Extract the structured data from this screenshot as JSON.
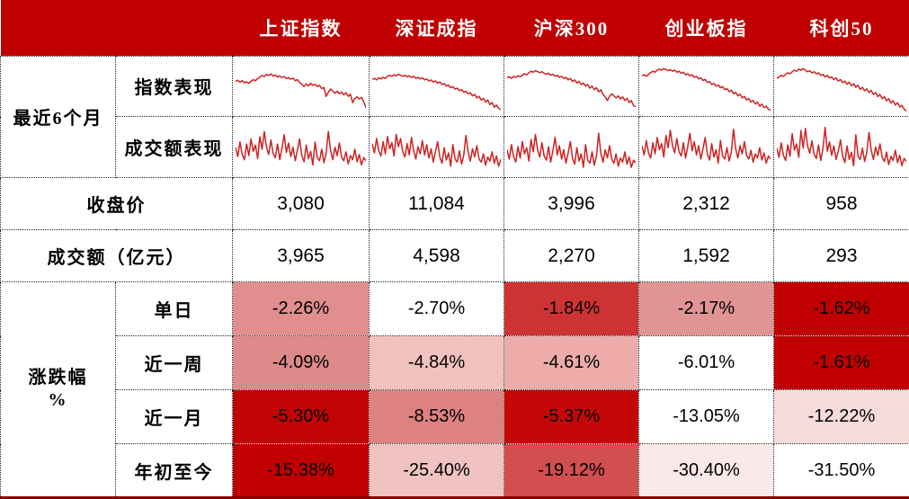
{
  "header": {
    "columns": [
      "上证指数",
      "深证成指",
      "沪深300",
      "创业板指",
      "科创50"
    ]
  },
  "labels": {
    "period_group": "最近6个月",
    "index_row": "指数表现",
    "volume_row": "成交额表现",
    "close_row": "收盘价",
    "turnover_row": "成交额（亿元）",
    "change_group_line1": "涨跌幅",
    "change_group_line2": "%"
  },
  "close": {
    "values": [
      "3,080",
      "11,084",
      "3,996",
      "2,312",
      "958"
    ]
  },
  "turnover": {
    "values": [
      "3,965",
      "4,598",
      "2,270",
      "1,592",
      "293"
    ]
  },
  "changes": {
    "rows": [
      {
        "label": "单日",
        "cells": [
          {
            "text": "-2.26%",
            "bg": "#E08E8E"
          },
          {
            "text": "-2.70%",
            "bg": "#FFFFFF"
          },
          {
            "text": "-1.84%",
            "bg": "#CE3334"
          },
          {
            "text": "-2.17%",
            "bg": "#E09494"
          },
          {
            "text": "-1.62%",
            "bg": "#C00000"
          }
        ]
      },
      {
        "label": "近一周",
        "cells": [
          {
            "text": "-4.09%",
            "bg": "#DF8A8A"
          },
          {
            "text": "-4.84%",
            "bg": "#F1C2BD"
          },
          {
            "text": "-4.61%",
            "bg": "#EDACA9"
          },
          {
            "text": "-6.01%",
            "bg": "#FFFFFF"
          },
          {
            "text": "-1.61%",
            "bg": "#C00000"
          }
        ]
      },
      {
        "label": "近一月",
        "cells": [
          {
            "text": "-5.30%",
            "bg": "#C10404"
          },
          {
            "text": "-8.53%",
            "bg": "#DE8181"
          },
          {
            "text": "-5.37%",
            "bg": "#C40808"
          },
          {
            "text": "-13.05%",
            "bg": "#FFFFFF"
          },
          {
            "text": "-12.22%",
            "bg": "#F6DBDA"
          }
        ]
      },
      {
        "label": "年初至今",
        "cells": [
          {
            "text": "-15.38%",
            "bg": "#C00000"
          },
          {
            "text": "-25.40%",
            "bg": "#F0C3C0"
          },
          {
            "text": "-19.12%",
            "bg": "#D14F4F"
          },
          {
            "text": "-30.40%",
            "bg": "#FAE9E8"
          },
          {
            "text": "-31.50%",
            "bg": "#FFFFFF"
          }
        ]
      }
    ]
  },
  "colors": {
    "header_bg": "#C00000",
    "strong_red": "#C00000",
    "sparkline": "#CE2222",
    "bottom_rule": "#8B0000",
    "grid_dots": "#222222"
  },
  "chart_data": {
    "type": "table",
    "title": "A股主要指数表现（最近6个月）",
    "columns": [
      "上证指数",
      "深证成指",
      "沪深300",
      "创业板指",
      "科创50"
    ],
    "close_price": [
      3080,
      11084,
      3996,
      2312,
      958
    ],
    "turnover_yi_yuan": [
      3965,
      4598,
      2270,
      1592,
      293
    ],
    "change_pct": {
      "单日": [
        -2.26,
        -2.7,
        -1.84,
        -2.17,
        -1.62
      ],
      "近一周": [
        -4.09,
        -4.84,
        -4.61,
        -6.01,
        -1.61
      ],
      "近一月": [
        -5.3,
        -8.53,
        -5.37,
        -13.05,
        -12.22
      ],
      "年初至今": [
        -15.38,
        -25.4,
        -19.12,
        -30.4,
        -31.5
      ]
    },
    "heatmap_note": "row-wise: least negative = deep red, most negative = white",
    "sparklines": {
      "index": [
        [
          63,
          65,
          61,
          64,
          60,
          62,
          59,
          63,
          66,
          64,
          68,
          71,
          74,
          72,
          76,
          74,
          77,
          73,
          75,
          71,
          73,
          70,
          72,
          68,
          70,
          67,
          69,
          64,
          66,
          61,
          57,
          53,
          58,
          54,
          59,
          55,
          57,
          53,
          55,
          49,
          51,
          34,
          42,
          48,
          44,
          40,
          44,
          39,
          42,
          37,
          41,
          34,
          38,
          22,
          30,
          33,
          29,
          32,
          24,
          12
        ],
        [
          66,
          68,
          65,
          69,
          67,
          70,
          68,
          72,
          74,
          72,
          75,
          73,
          76,
          74,
          72,
          74,
          71,
          73,
          70,
          72,
          68,
          70,
          67,
          69,
          65,
          67,
          63,
          65,
          61,
          63,
          59,
          61,
          56,
          58,
          53,
          55,
          50,
          52,
          47,
          49,
          44,
          46,
          41,
          43,
          38,
          40,
          34,
          37,
          30,
          33,
          26,
          29,
          22,
          26,
          17,
          21,
          12,
          16,
          10,
          7
        ],
        [
          69,
          71,
          68,
          72,
          70,
          73,
          71,
          74,
          77,
          75,
          79,
          82,
          80,
          83,
          81,
          79,
          81,
          78,
          76,
          78,
          74,
          76,
          72,
          74,
          70,
          72,
          68,
          70,
          65,
          68,
          62,
          65,
          59,
          62,
          56,
          59,
          53,
          56,
          49,
          53,
          46,
          50,
          42,
          46,
          37,
          32,
          25,
          33,
          38,
          34,
          30,
          34,
          28,
          32,
          25,
          29,
          21,
          25,
          15,
          13
        ],
        [
          73,
          75,
          72,
          76,
          79,
          82,
          80,
          84,
          86,
          84,
          87,
          85,
          83,
          85,
          82,
          84,
          80,
          82,
          78,
          80,
          75,
          77,
          73,
          75,
          70,
          72,
          67,
          69,
          64,
          66,
          60,
          62,
          56,
          58,
          53,
          55,
          50,
          52,
          46,
          48,
          42,
          45,
          38,
          41,
          34,
          37,
          30,
          33,
          26,
          29,
          22,
          25,
          18,
          22,
          14,
          18,
          11,
          14,
          8,
          6
        ],
        [
          68,
          71,
          74,
          72,
          76,
          79,
          77,
          81,
          84,
          82,
          86,
          84,
          87,
          84,
          81,
          83,
          79,
          81,
          77,
          79,
          74,
          76,
          71,
          74,
          69,
          71,
          66,
          69,
          63,
          66,
          60,
          63,
          57,
          61,
          54,
          58,
          51,
          55,
          47,
          51,
          44,
          48,
          41,
          45,
          37,
          41,
          33,
          37,
          29,
          33,
          25,
          29,
          21,
          25,
          17,
          21,
          13,
          16,
          9,
          5
        ]
      ],
      "volume": [
        [
          52,
          34,
          62,
          38,
          28,
          58,
          36,
          68,
          44,
          56,
          30,
          72,
          48,
          82,
          52,
          38,
          66,
          40,
          32,
          58,
          28,
          50,
          76,
          42,
          60,
          34,
          52,
          26,
          46,
          68,
          36,
          24,
          56,
          30,
          44,
          18,
          62,
          32,
          26,
          48,
          22,
          40,
          82,
          46,
          28,
          52,
          36,
          60,
          33,
          26,
          43,
          20,
          36,
          28,
          48,
          24,
          38,
          18,
          32,
          26
        ],
        [
          60,
          42,
          70,
          46,
          36,
          64,
          40,
          74,
          50,
          62,
          36,
          78,
          54,
          70,
          44,
          34,
          60,
          38,
          72,
          46,
          30,
          54,
          40,
          66,
          38,
          58,
          32,
          50,
          24,
          44,
          64,
          34,
          22,
          52,
          28,
          42,
          16,
          58,
          30,
          24,
          46,
          20,
          38,
          76,
          44,
          26,
          50,
          34,
          56,
          30,
          24,
          40,
          18,
          34,
          26,
          44,
          22,
          36,
          16,
          30
        ],
        [
          48,
          30,
          58,
          34,
          24,
          54,
          32,
          64,
          40,
          52,
          26,
          68,
          44,
          78,
          48,
          34,
          62,
          36,
          28,
          54,
          24,
          46,
          72,
          38,
          56,
          30,
          48,
          22,
          42,
          64,
          32,
          20,
          52,
          26,
          40,
          14,
          58,
          28,
          22,
          44,
          18,
          36,
          80,
          42,
          24,
          48,
          32,
          56,
          30,
          22,
          40,
          16,
          32,
          24,
          44,
          20,
          34,
          14,
          28,
          22
        ],
        [
          56,
          38,
          66,
          42,
          32,
          62,
          40,
          72,
          48,
          60,
          34,
          76,
          52,
          86,
          56,
          42,
          70,
          44,
          36,
          62,
          32,
          54,
          80,
          46,
          64,
          38,
          56,
          30,
          50,
          72,
          40,
          28,
          60,
          34,
          48,
          22,
          66,
          36,
          30,
          52,
          26,
          44,
          88,
          50,
          32,
          56,
          40,
          64,
          37,
          30,
          47,
          24,
          40,
          32,
          52,
          28,
          42,
          22,
          36,
          30
        ],
        [
          50,
          32,
          60,
          36,
          26,
          56,
          34,
          78,
          46,
          58,
          32,
          84,
          50,
          88,
          54,
          40,
          64,
          38,
          30,
          56,
          26,
          48,
          90,
          44,
          62,
          36,
          54,
          28,
          44,
          66,
          34,
          22,
          54,
          28,
          42,
          16,
          76,
          34,
          28,
          50,
          24,
          42,
          80,
          46,
          28,
          52,
          36,
          58,
          32,
          24,
          42,
          18,
          34,
          26,
          46,
          22,
          36,
          16,
          30,
          24
        ]
      ]
    }
  }
}
